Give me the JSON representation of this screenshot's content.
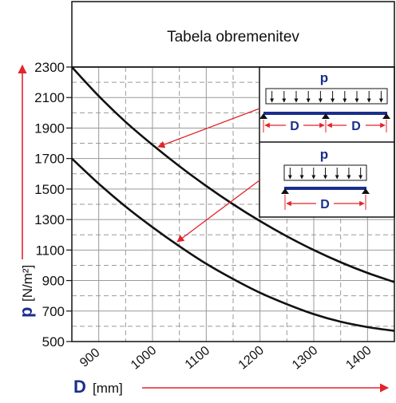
{
  "chart_data": {
    "type": "line",
    "title": "Tabela obremenitev",
    "xlabel": {
      "symbol": "D",
      "unit": "[mm]"
    },
    "ylabel": {
      "symbol": "p",
      "unit": "[N/m²]"
    },
    "xlim": [
      850,
      1450
    ],
    "ylim": [
      500,
      2300
    ],
    "x_ticks": [
      900,
      1000,
      1100,
      1200,
      1300,
      1400
    ],
    "y_ticks": [
      500,
      700,
      900,
      1100,
      1300,
      1500,
      1700,
      1900,
      2100,
      2300
    ],
    "grid": true,
    "series": [
      {
        "color": "#111111",
        "x": [
          850,
          900,
          950,
          1000,
          1050,
          1100,
          1150,
          1200,
          1250,
          1300,
          1350,
          1400,
          1450
        ],
        "y": [
          2300,
          2110,
          1940,
          1790,
          1650,
          1520,
          1400,
          1290,
          1190,
          1100,
          1020,
          950,
          890
        ]
      },
      {
        "color": "#111111",
        "x": [
          850,
          900,
          950,
          1000,
          1050,
          1100,
          1150,
          1200,
          1250,
          1300,
          1350,
          1400,
          1450
        ],
        "y": [
          1700,
          1535,
          1385,
          1250,
          1125,
          1010,
          910,
          820,
          745,
          680,
          630,
          595,
          570
        ]
      }
    ],
    "annotations": [
      {
        "label": "p",
        "dimension": "D",
        "spans": 2,
        "points_to_series": 0
      },
      {
        "label": "p",
        "dimension": "D",
        "spans": 1,
        "points_to_series": 1
      }
    ],
    "colors": {
      "symbol": "#1a2e8c",
      "accent_red": "#e3242b",
      "beam": "#1a2e8c",
      "grid": "#999999",
      "frame": "#111111",
      "axis_arrow": "#e3242b"
    }
  }
}
